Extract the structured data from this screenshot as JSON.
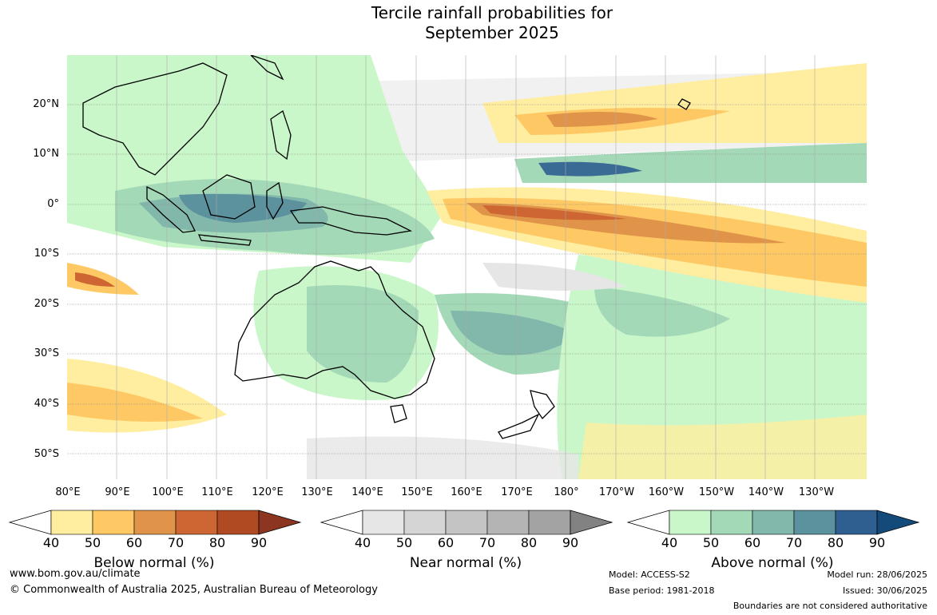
{
  "title": {
    "line1": "Tercile rainfall probabilities for",
    "line2": "September 2025"
  },
  "map": {
    "lat_labels": [
      "20°N",
      "10°N",
      "0°",
      "10°S",
      "20°S",
      "30°S",
      "40°S",
      "50°S"
    ],
    "lon_labels": [
      "80°E",
      "90°E",
      "100°E",
      "110°E",
      "120°E",
      "130°E",
      "140°E",
      "150°E",
      "160°E",
      "170°E",
      "180°",
      "170°W",
      "160°W",
      "150°W",
      "140°W",
      "130°W"
    ]
  },
  "colorbars": [
    {
      "label": "Below normal (%)",
      "ticks": [
        "40",
        "50",
        "60",
        "70",
        "80",
        "90"
      ],
      "colors": [
        "#ffffff",
        "#ffeda0",
        "#fec964",
        "#e0944a",
        "#cd6632",
        "#b04a22",
        "#8c3520"
      ]
    },
    {
      "label": "Near normal (%)",
      "ticks": [
        "40",
        "50",
        "60",
        "70",
        "80",
        "90"
      ],
      "colors": [
        "#ffffff",
        "#e6e6e6",
        "#d5d5d5",
        "#c4c4c4",
        "#b4b4b4",
        "#a3a3a3",
        "#828282"
      ]
    },
    {
      "label": "Above normal (%)",
      "ticks": [
        "40",
        "50",
        "60",
        "70",
        "80",
        "90"
      ],
      "colors": [
        "#ffffff",
        "#c9f7c9",
        "#a4d9b8",
        "#82b8ab",
        "#5b929e",
        "#2f5e91",
        "#144a7a"
      ]
    }
  ],
  "footer": {
    "website": "www.bom.gov.au/climate",
    "copyright": "© Commonwealth of Australia 2025, Australian Bureau of Meteorology",
    "model": "Model: ACCESS-S2",
    "base_period": "Base period: 1981-2018",
    "model_run": "Model run: 28/06/2025",
    "issued": "Issued: 30/06/2025",
    "disclaimer": "Boundaries are not considered authoritative"
  }
}
